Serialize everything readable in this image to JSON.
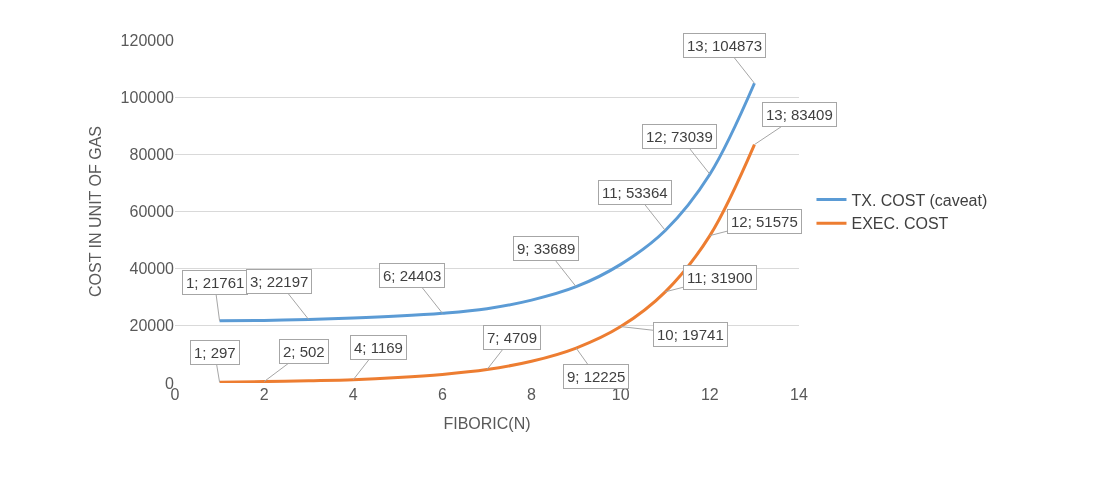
{
  "chart_data": {
    "type": "line",
    "xlabel": "FIBORIC(N)",
    "ylabel": "COST IN UNIT OF GAS",
    "x": [
      1,
      2,
      3,
      4,
      5,
      6,
      7,
      8,
      9,
      10,
      11,
      12,
      13
    ],
    "series": [
      {
        "name": "TX. COST (caveat)",
        "color": "#5b9bd5",
        "values": [
          21761,
          21900,
          22197,
          22700,
          23400,
          24403,
          26000,
          29000,
          33689,
          41500,
          53364,
          73039,
          104873
        ],
        "value_labels": [
          "1; 21761",
          null,
          "3; 22197",
          null,
          null,
          "6; 24403",
          null,
          null,
          "9; 33689",
          null,
          "11; 53364",
          "12; 73039",
          "13; 104873"
        ]
      },
      {
        "name": "EXEC. COST",
        "color": "#ed7d31",
        "values": [
          297,
          502,
          800,
          1169,
          1900,
          3000,
          4709,
          7600,
          12225,
          19741,
          31900,
          51575,
          83409
        ],
        "value_labels": [
          "1; 297",
          "2; 502",
          null,
          "4; 1169",
          null,
          null,
          "7; 4709",
          null,
          "9; 12225",
          "10; 19741",
          "11; 31900",
          "12; 51575",
          "13; 83409"
        ]
      }
    ],
    "xlim": [
      0,
      14
    ],
    "xticks": [
      0,
      2,
      4,
      6,
      8,
      10,
      12,
      14
    ],
    "ylim": [
      0,
      120000
    ],
    "yticks": [
      0,
      20000,
      40000,
      60000,
      80000,
      100000,
      120000
    ],
    "grid": "y",
    "legend": "right",
    "marker": "none",
    "line_style": "solid"
  }
}
